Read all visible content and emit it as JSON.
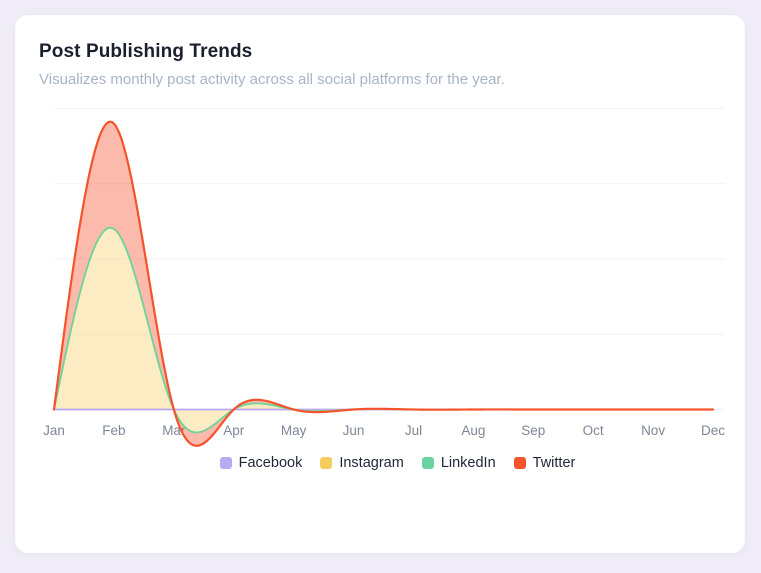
{
  "card": {
    "title": "Post Publishing Trends",
    "subtitle": "Visualizes monthly post activity across all social platforms for the year."
  },
  "chart_data": {
    "type": "area",
    "title": "Post Publishing Trends",
    "x": [
      "Jan",
      "Feb",
      "Mar",
      "Apr",
      "May",
      "Jun",
      "Jul",
      "Aug",
      "Sep",
      "Oct",
      "Nov",
      "Dec"
    ],
    "series": [
      {
        "name": "Facebook",
        "color": "#b8a9f3",
        "fill_color": null,
        "fill_to": null,
        "values": [
          0,
          0,
          0,
          0,
          0,
          0,
          0,
          0,
          0,
          0,
          0,
          0
        ]
      },
      {
        "name": "Instagram",
        "color": "#f5cd5f",
        "fill_color": "rgba(246,206,99,0.38)",
        "fill_to": "origin",
        "values": [
          0,
          60,
          0,
          0,
          0,
          0,
          0,
          0,
          0,
          0,
          0,
          0
        ]
      },
      {
        "name": "LinkedIn",
        "color": "#6bd3a0",
        "fill_color": null,
        "fill_to": null,
        "values": [
          0,
          60,
          0,
          0,
          0,
          0,
          0,
          0,
          0,
          0,
          0,
          0
        ]
      },
      {
        "name": "Twitter",
        "color": "#f4532c",
        "fill_color": "rgba(244,83,44,0.40)",
        "fill_to": "LinkedIn",
        "values": [
          0,
          95,
          0,
          0,
          0,
          0,
          0,
          0,
          0,
          0,
          0,
          0
        ]
      }
    ],
    "curve": "natural-cubic-spline",
    "ylim": [
      0,
      100
    ],
    "grid_step": 25,
    "grid": "horizontal",
    "gridline_color": "#f1f1f5",
    "y_axis_labels_visible": false,
    "legend_position": "bottom"
  },
  "colors": {
    "page_background": "#efecf8",
    "card_background": "#ffffff",
    "title_text": "#1a202e",
    "subtitle_text": "#a8b4c6",
    "axis_label_text": "#7e8796"
  }
}
